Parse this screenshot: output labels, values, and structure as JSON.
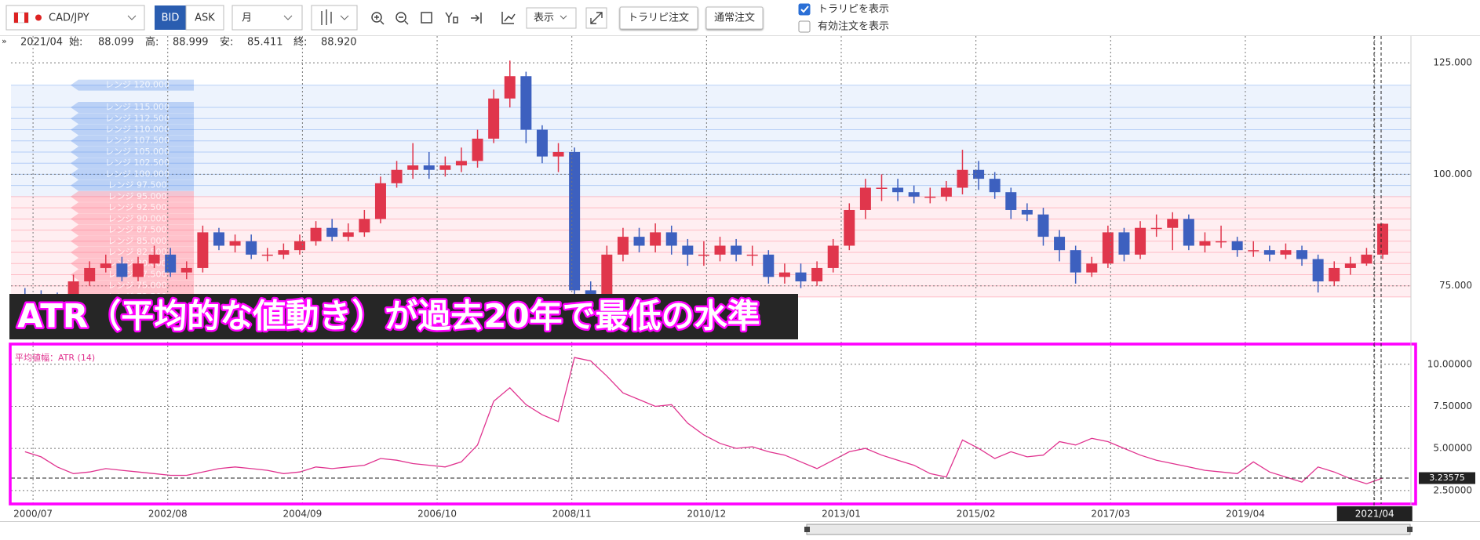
{
  "toolbar": {
    "pair": "CAD/JPY",
    "bid": "BID",
    "ask": "ASK",
    "period": "月",
    "display": "表示",
    "buttons": [
      "トラリピ注文",
      "通常注文"
    ],
    "checkboxes": [
      {
        "label": "トラリピを表示",
        "checked": true
      },
      {
        "label": "有効注文を表示",
        "checked": false
      }
    ]
  },
  "info": {
    "date": "2021/04",
    "fields": [
      {
        "label": "始:",
        "value": "88.099"
      },
      {
        "label": "高:",
        "value": "88.999"
      },
      {
        "label": "安:",
        "value": "85.411"
      },
      {
        "label": "終:",
        "value": "88.920"
      }
    ]
  },
  "banner": "ATR（平均的な値動き）が過去20年で最低の水準",
  "chart_data": [
    {
      "type": "candlestick",
      "up_color": "#e0364c",
      "down_color": "#3d60bf",
      "x": [
        "2000/04",
        "2000/07",
        "2000/10",
        "2001/01",
        "2001/04",
        "2001/07",
        "2001/10",
        "2002/01",
        "2002/04",
        "2002/07",
        "2002/10",
        "2003/01",
        "2003/04",
        "2003/07",
        "2003/10",
        "2004/01",
        "2004/04",
        "2004/07",
        "2004/10",
        "2005/01",
        "2005/04",
        "2005/07",
        "2005/10",
        "2006/01",
        "2006/04",
        "2006/07",
        "2006/10",
        "2007/01",
        "2007/04",
        "2007/07",
        "2007/10",
        "2008/01",
        "2008/04",
        "2008/07",
        "2008/10",
        "2009/01",
        "2009/04",
        "2009/07",
        "2009/10",
        "2010/01",
        "2010/04",
        "2010/07",
        "2010/10",
        "2011/01",
        "2011/04",
        "2011/07",
        "2011/10",
        "2012/01",
        "2012/04",
        "2012/07",
        "2012/10",
        "2013/01",
        "2013/04",
        "2013/07",
        "2013/10",
        "2014/01",
        "2014/04",
        "2014/07",
        "2014/10",
        "2015/01",
        "2015/04",
        "2015/07",
        "2015/10",
        "2016/01",
        "2016/04",
        "2016/07",
        "2016/10",
        "2017/01",
        "2017/04",
        "2017/07",
        "2017/10",
        "2018/01",
        "2018/04",
        "2018/07",
        "2018/10",
        "2019/01",
        "2019/04",
        "2019/07",
        "2019/10",
        "2020/01",
        "2020/04",
        "2020/07",
        "2020/10",
        "2021/01",
        "2021/04"
      ],
      "open": [
        73,
        72.5,
        72,
        71.5,
        76,
        79,
        80,
        77,
        80,
        82,
        78,
        79,
        87,
        84,
        85,
        82,
        82,
        83,
        85,
        88,
        86,
        87,
        90,
        98,
        101,
        102,
        101,
        102,
        103,
        108,
        117,
        122,
        110,
        104,
        105,
        74,
        72,
        82,
        86,
        84,
        87,
        84,
        82,
        82,
        84,
        82,
        82,
        77,
        78,
        76,
        79,
        84,
        92,
        97,
        97,
        96,
        95,
        95,
        97,
        101,
        99,
        96,
        92,
        91,
        86,
        83,
        78,
        80,
        87,
        82,
        88,
        88,
        90,
        84,
        85,
        85,
        83,
        83,
        82,
        83,
        81,
        76,
        79,
        80,
        82
      ],
      "high": [
        74.5,
        74,
        73.5,
        77.5,
        80.5,
        82,
        81.5,
        81.5,
        84,
        83.5,
        80.5,
        88.5,
        88,
        86.5,
        86.5,
        83.5,
        84.5,
        86.5,
        89.5,
        90,
        89,
        92,
        99.5,
        103,
        107,
        105,
        104,
        106,
        110,
        119,
        125.5,
        123,
        111,
        107,
        106,
        76,
        84,
        88,
        88,
        89,
        88.5,
        85.5,
        85,
        86,
        85.5,
        84,
        83,
        80,
        80,
        80.5,
        85.5,
        93.5,
        99,
        100,
        99,
        97.5,
        97,
        98.5,
        105.5,
        103,
        100.5,
        97,
        93.5,
        92.5,
        87.5,
        84,
        81.5,
        88.5,
        88,
        89.5,
        91,
        91.5,
        91,
        87,
        88.5,
        86,
        85,
        84,
        84.5,
        84,
        82,
        80.5,
        81.5,
        83.5,
        88.999
      ],
      "low": [
        71.5,
        70.5,
        70,
        70.5,
        75,
        78,
        76,
        76,
        79,
        77,
        76.5,
        78,
        83,
        82.5,
        81,
        80.5,
        81,
        82,
        84,
        85,
        85,
        86,
        89,
        97,
        99,
        99,
        99.5,
        100.5,
        101.5,
        107,
        115,
        107,
        102.5,
        100.5,
        68,
        68.5,
        70.5,
        80.5,
        82.5,
        82.5,
        82,
        79.5,
        79.5,
        80.5,
        80.5,
        79.5,
        75.5,
        75.5,
        74.5,
        75,
        78,
        83,
        90,
        94,
        94,
        93.5,
        93.5,
        94,
        95.5,
        96.5,
        94.5,
        90,
        89.5,
        84,
        80.5,
        75.5,
        77,
        79,
        80.5,
        81,
        86,
        83,
        83,
        82.5,
        83.5,
        81.5,
        81.5,
        80.5,
        81,
        79.5,
        73.5,
        75,
        77.5,
        79.5,
        81
      ],
      "close": [
        72.5,
        72,
        71.5,
        76,
        79,
        80,
        77,
        80,
        82,
        78,
        79,
        87,
        84,
        85,
        82,
        82,
        83,
        85,
        88,
        86,
        87,
        90,
        98,
        101,
        102,
        101,
        102,
        103,
        108,
        117,
        122,
        110,
        104,
        105,
        74,
        72,
        82,
        86,
        84,
        87,
        84,
        82,
        82,
        84,
        82,
        82,
        77,
        78,
        76,
        79,
        84,
        92,
        97,
        97,
        96,
        95,
        95,
        97,
        101,
        99,
        96,
        92,
        91,
        86,
        83,
        78,
        80,
        87,
        82,
        88,
        88,
        90,
        84,
        85,
        85,
        83,
        83,
        82,
        83,
        81,
        76,
        79,
        80,
        82,
        88.92
      ],
      "ylim": [
        63,
        131
      ],
      "yticks": [
        {
          "value": 75,
          "label": "75.000"
        },
        {
          "value": 100,
          "label": "100.000"
        },
        {
          "value": 125,
          "label": "125.000"
        }
      ],
      "grid": true,
      "annotations": [
        {
          "value": 120,
          "label": "レンジ 120.000",
          "color": "#4a86e8"
        },
        {
          "value": 115,
          "label": "レンジ 115.000",
          "color": "#4a86e8"
        },
        {
          "value": 112.5,
          "label": "レンジ 112.500",
          "color": "#4a86e8"
        },
        {
          "value": 110,
          "label": "レンジ 110.000",
          "color": "#4a86e8"
        },
        {
          "value": 107.5,
          "label": "レンジ 107.500",
          "color": "#4a86e8"
        },
        {
          "value": 105,
          "label": "レンジ 105.000",
          "color": "#4a86e8"
        },
        {
          "value": 102.5,
          "label": "レンジ 102.500",
          "color": "#4a86e8"
        },
        {
          "value": 100,
          "label": "レンジ 100.000",
          "color": "#4a86e8"
        },
        {
          "value": 97.5,
          "label": "レンジ 97.500",
          "color": "#4a86e8"
        },
        {
          "value": 95,
          "label": "レンジ 95.000",
          "color": "#ff5c73"
        },
        {
          "value": 92.5,
          "label": "レンジ 92.500",
          "color": "#ff5c73"
        },
        {
          "value": 90,
          "label": "レンジ 90.000",
          "color": "#ff5c73"
        },
        {
          "value": 87.5,
          "label": "レンジ 87.500",
          "color": "#ff5c73"
        },
        {
          "value": 85,
          "label": "レンジ 85.000",
          "color": "#ff5c73"
        },
        {
          "value": 82.5,
          "label": "レンジ 82.500",
          "color": "#ff5c73"
        },
        {
          "value": 80,
          "label": "レンジ 80.000",
          "color": "#ff5c73"
        },
        {
          "value": 77.5,
          "label": "レンジ 77.500",
          "color": "#ff5c73"
        },
        {
          "value": 75,
          "label": "レンジ 75.000",
          "color": "#ff5c73"
        },
        {
          "value": 72.5,
          "label": "レンジ 72.500",
          "color": "#ff5c73"
        }
      ]
    },
    {
      "type": "line",
      "title": "平均値幅：ATR (14)",
      "color": "#e0338f",
      "values": [
        4.8,
        4.5,
        3.9,
        3.5,
        3.6,
        3.8,
        3.7,
        3.6,
        3.5,
        3.4,
        3.4,
        3.6,
        3.8,
        3.9,
        3.8,
        3.7,
        3.5,
        3.6,
        3.9,
        3.8,
        3.9,
        4.0,
        4.4,
        4.3,
        4.1,
        4.0,
        3.9,
        4.2,
        5.2,
        7.8,
        8.6,
        7.6,
        7.0,
        6.6,
        10.4,
        10.2,
        9.3,
        8.3,
        7.9,
        7.5,
        7.6,
        6.5,
        5.8,
        5.3,
        5.0,
        5.1,
        4.8,
        4.6,
        4.2,
        3.8,
        4.3,
        4.8,
        5.0,
        4.6,
        4.3,
        4.0,
        3.5,
        3.3,
        5.5,
        5.0,
        4.4,
        4.8,
        4.5,
        4.6,
        5.4,
        5.2,
        5.6,
        5.4,
        5.0,
        4.6,
        4.3,
        4.1,
        3.9,
        3.7,
        3.6,
        3.5,
        4.2,
        3.6,
        3.3,
        3.0,
        3.9,
        3.6,
        3.2,
        2.9,
        3.23575
      ],
      "ylim": [
        1.7,
        11.2
      ],
      "yticks": [
        {
          "value": 2.5,
          "label": "2.50000"
        },
        {
          "value": 5,
          "label": "5.00000"
        },
        {
          "value": 7.5,
          "label": "7.50000"
        },
        {
          "value": 10,
          "label": "10.00000"
        }
      ],
      "grid": true,
      "xticks": [
        "2000/07",
        "2002/08",
        "2004/09",
        "2006/10",
        "2008/11",
        "2010/12",
        "2013/01",
        "2015/02",
        "2017/03",
        "2019/04",
        "2021/04"
      ]
    }
  ]
}
